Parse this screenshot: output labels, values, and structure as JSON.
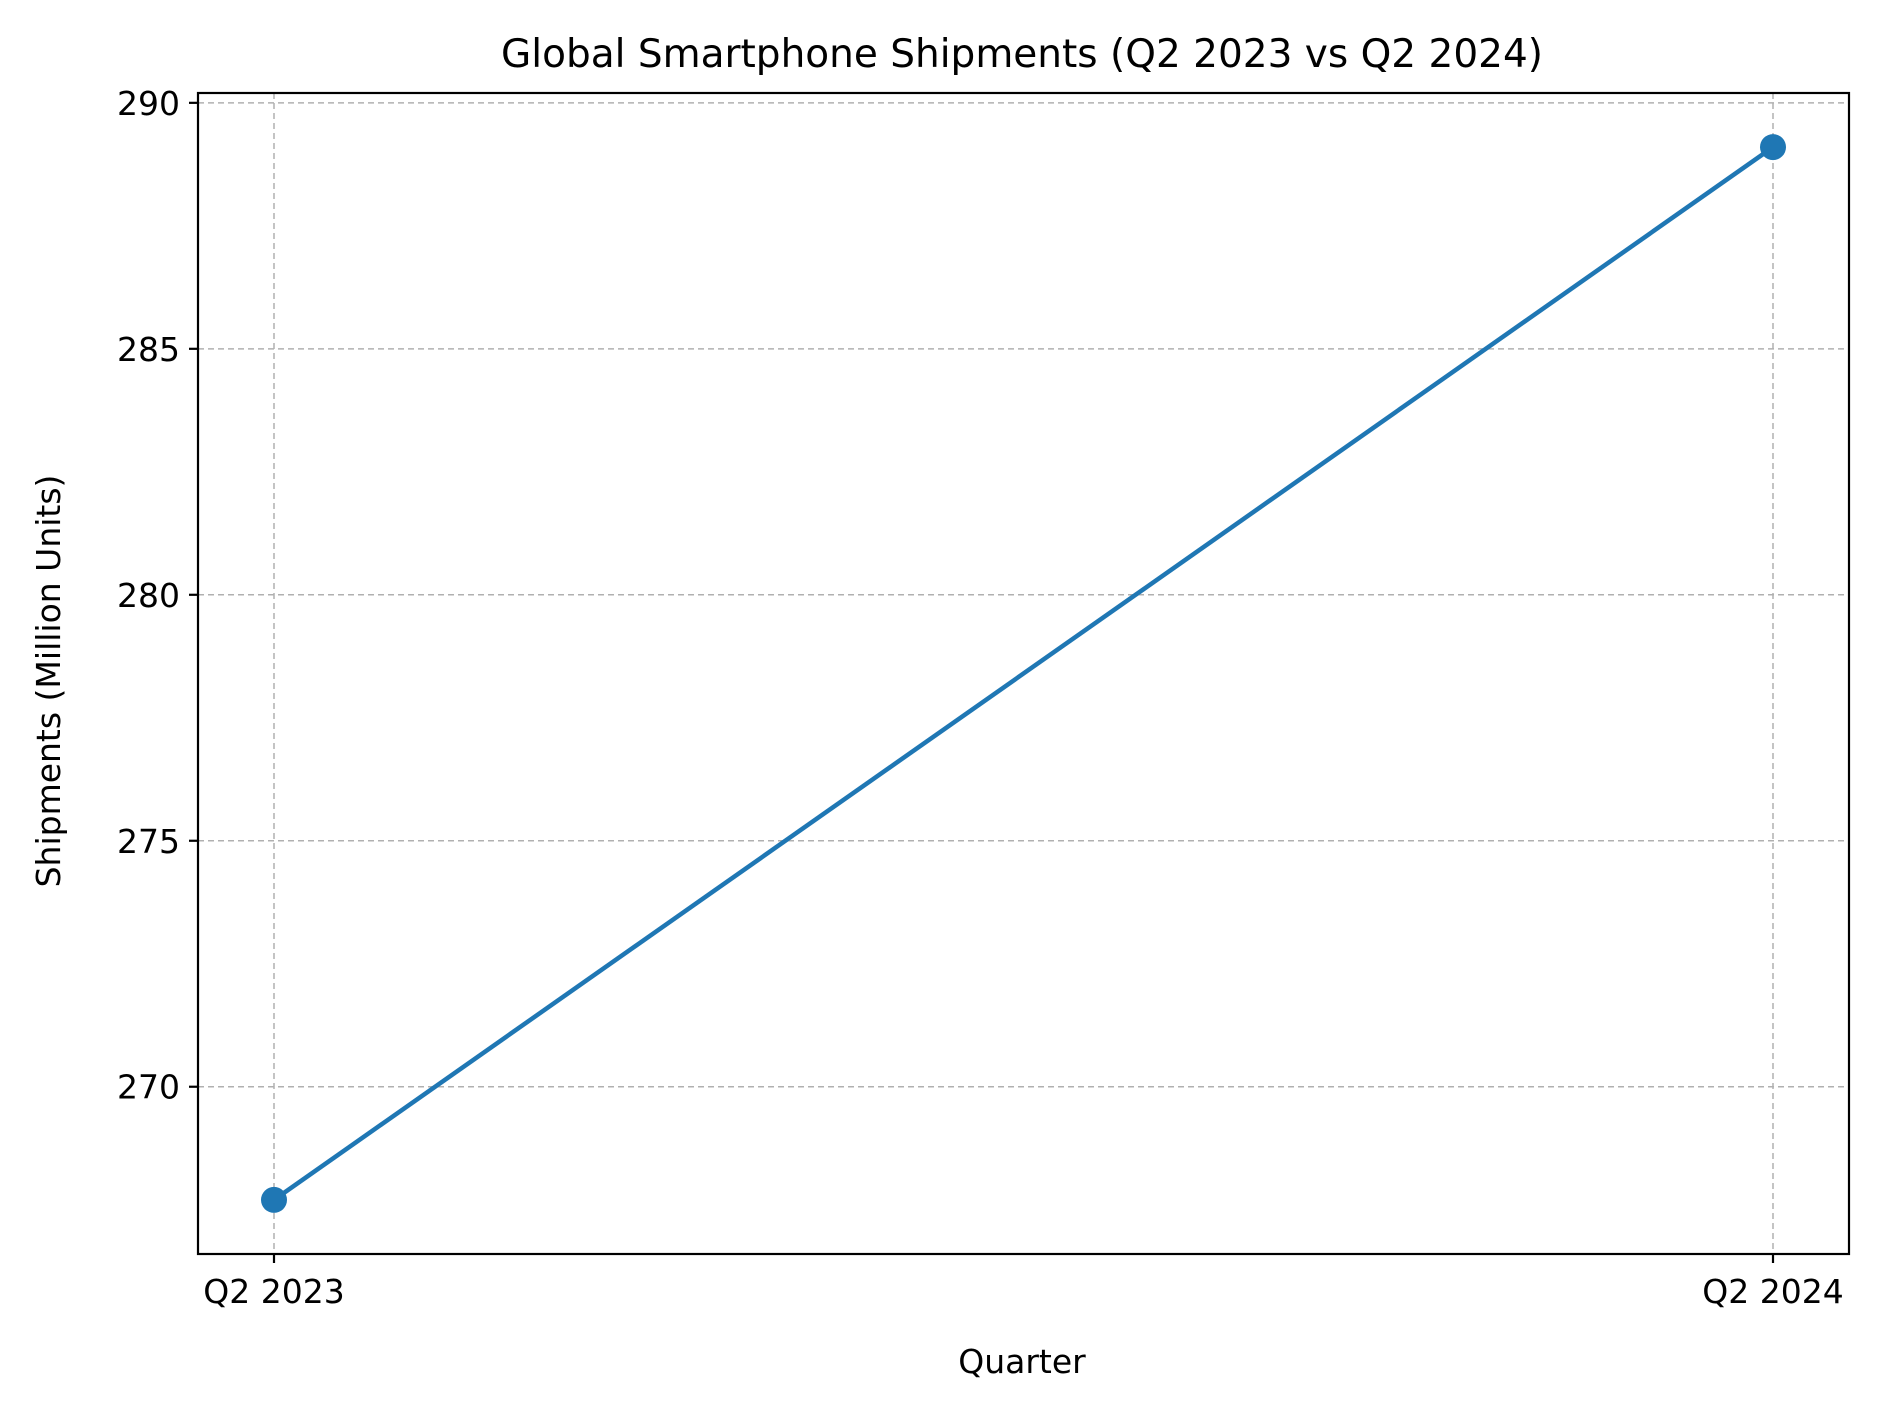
{
  "chart_data": {
    "type": "line",
    "title": "Global Smartphone Shipments (Q2 2023 vs Q2 2024)",
    "xlabel": "Quarter",
    "ylabel": "Shipments (Million Units)",
    "categories": [
      "Q2 2023",
      "Q2 2024"
    ],
    "series": [
      {
        "name": "Shipments",
        "values": [
          267.7,
          289.1
        ],
        "color": "#1f77b4",
        "marker": "circle"
      }
    ],
    "ylim": [
      266.6,
      290.2
    ],
    "yticks": [
      270,
      275,
      280,
      285,
      290
    ],
    "grid": true,
    "legend": "none"
  }
}
